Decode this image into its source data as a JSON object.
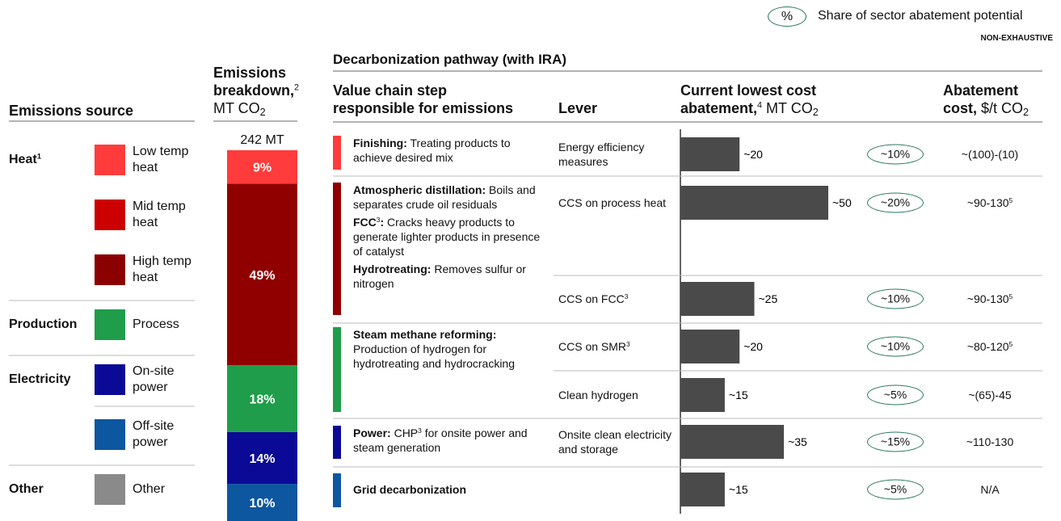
{
  "legend_note": {
    "symbol": "%",
    "text": "Share of sector abatement potential"
  },
  "tag": "NON-EXHAUSTIVE",
  "pathway_title": "Decarbonization pathway (with IRA)",
  "source_header": [
    [
      {
        "bold": "Emissions source"
      }
    ]
  ],
  "step_header": [
    [
      {
        "bold": "Value chain step"
      }
    ],
    [
      {
        "bold": "responsible for emissions"
      }
    ]
  ],
  "lever_header": [
    [
      {
        "bold": "Lever"
      }
    ]
  ],
  "cost_header": [
    [
      {
        "bold": "Abatement"
      }
    ],
    [
      {
        "bold": "cost,"
      },
      {
        "text": " $/t CO"
      },
      {
        "sub": "2"
      }
    ]
  ],
  "sources": [
    {
      "group": [
        {
          "bold": "Heat"
        },
        {
          "sup": "1"
        }
      ],
      "items": [
        {
          "label": "Low temp heat",
          "color": "#ff3b3b"
        },
        {
          "label": "Mid temp heat",
          "color": "#cc0000"
        },
        {
          "label": "High temp heat",
          "color": "#8b0000"
        }
      ]
    },
    {
      "group": [
        {
          "bold": "Production"
        }
      ],
      "items": [
        {
          "label": "Process",
          "color": "#1f9d4a"
        }
      ]
    },
    {
      "group": [
        {
          "bold": "Electricity"
        }
      ],
      "items": [
        {
          "label": "On-site power",
          "color": "#0a0a96"
        },
        {
          "label": "Off-site power",
          "color": "#0d56a0"
        }
      ]
    },
    {
      "group": [
        {
          "bold": "Other"
        }
      ],
      "items": [
        {
          "label": "Other",
          "color": "#8a8a8a"
        }
      ]
    }
  ],
  "chart_data": [
    {
      "type": "stacked_bar",
      "title": [
        [
          {
            "bold": "Emissions"
          }
        ],
        [
          {
            "bold": "breakdown,"
          },
          {
            "sup": "2"
          }
        ],
        [
          {
            "text": "MT CO"
          },
          {
            "sub": "2"
          }
        ]
      ],
      "total_label": "242 MT",
      "values": [
        9,
        49,
        18,
        14,
        10
      ],
      "value_labels": [
        "9%",
        "49%",
        "18%",
        "14%",
        "10%"
      ],
      "colors": [
        "#ff3b3b",
        "#900000",
        "#1f9d4a",
        "#0a0a96",
        "#0d56a0"
      ],
      "ylim": [
        0,
        100
      ]
    },
    {
      "type": "bar",
      "orientation": "horizontal",
      "title": [
        [
          {
            "bold": "Current lowest cost"
          }
        ],
        [
          {
            "bold": "abatement,"
          },
          {
            "sup": "4"
          },
          {
            "text": " MT CO"
          },
          {
            "sub": "2"
          }
        ]
      ],
      "values": [
        20,
        50,
        25,
        20,
        15,
        35,
        15
      ],
      "value_labels": [
        "~20",
        "~50",
        "~25",
        "~20",
        "~15",
        "~35",
        "~15"
      ],
      "color": "#4a4a4a",
      "xlim": [
        0,
        50
      ]
    }
  ],
  "steps": [
    {
      "color": "#ff3b3b",
      "entries": [
        [
          {
            "bold": "Finishing:"
          },
          {
            "text": " Treating products to achieve desired mix"
          }
        ]
      ]
    },
    {
      "color": "#900000",
      "entries": [
        [
          {
            "bold": "Atmospheric distillation:"
          },
          {
            "text": " Boils and separates crude oil residuals"
          }
        ],
        [
          {
            "bold": "FCC"
          },
          {
            "sup": "3"
          },
          {
            "bold": ":"
          },
          {
            "text": " Cracks heavy products to generate lighter products in presence of catalyst"
          }
        ],
        [
          {
            "bold": "Hydrotreating:"
          },
          {
            "text": " Removes sulfur or nitrogen"
          }
        ]
      ]
    },
    {
      "color": "#1f9d4a",
      "entries": [
        [
          {
            "bold": "Steam methane reforming:"
          },
          {
            "text": " Production of hydrogen for hydrotreating and hydrocracking"
          }
        ]
      ]
    },
    {
      "color": "#0a0a96",
      "entries": [
        [
          {
            "bold": "Power:"
          },
          {
            "text": " CHP"
          },
          {
            "sup": "3"
          },
          {
            "text": " for onsite power and steam generation"
          }
        ]
      ]
    },
    {
      "color": "#0d56a0",
      "entries": [
        [
          {
            "bold": "Grid decarbonization"
          }
        ]
      ]
    }
  ],
  "rows": [
    {
      "lever": [
        {
          "text": "Energy efficiency measures"
        }
      ],
      "share": "~10%",
      "cost": [
        {
          "text": "~(100)-(10)"
        }
      ]
    },
    {
      "lever": [
        {
          "text": "CCS on process heat"
        }
      ],
      "share": "~20%",
      "cost": [
        {
          "text": "~90-130"
        },
        {
          "sup": "5"
        }
      ]
    },
    {
      "lever": [
        {
          "text": "CCS on FCC"
        },
        {
          "sup": "3"
        }
      ],
      "share": "~10%",
      "cost": [
        {
          "text": "~90-130"
        },
        {
          "sup": "5"
        }
      ]
    },
    {
      "lever": [
        {
          "text": "CCS on SMR"
        },
        {
          "sup": "3"
        }
      ],
      "share": "~10%",
      "cost": [
        {
          "text": "~80-120"
        },
        {
          "sup": "5"
        }
      ]
    },
    {
      "lever": [
        {
          "text": "Clean hydrogen"
        }
      ],
      "share": "~5%",
      "cost": [
        {
          "text": "~(65)-45"
        }
      ]
    },
    {
      "lever": [
        {
          "text": "Onsite clean electricity and storage"
        }
      ],
      "share": "~15%",
      "cost": [
        {
          "text": "~110-130"
        }
      ]
    },
    {
      "share": "~5%",
      "cost": [
        {
          "text": "N/A"
        }
      ]
    }
  ]
}
